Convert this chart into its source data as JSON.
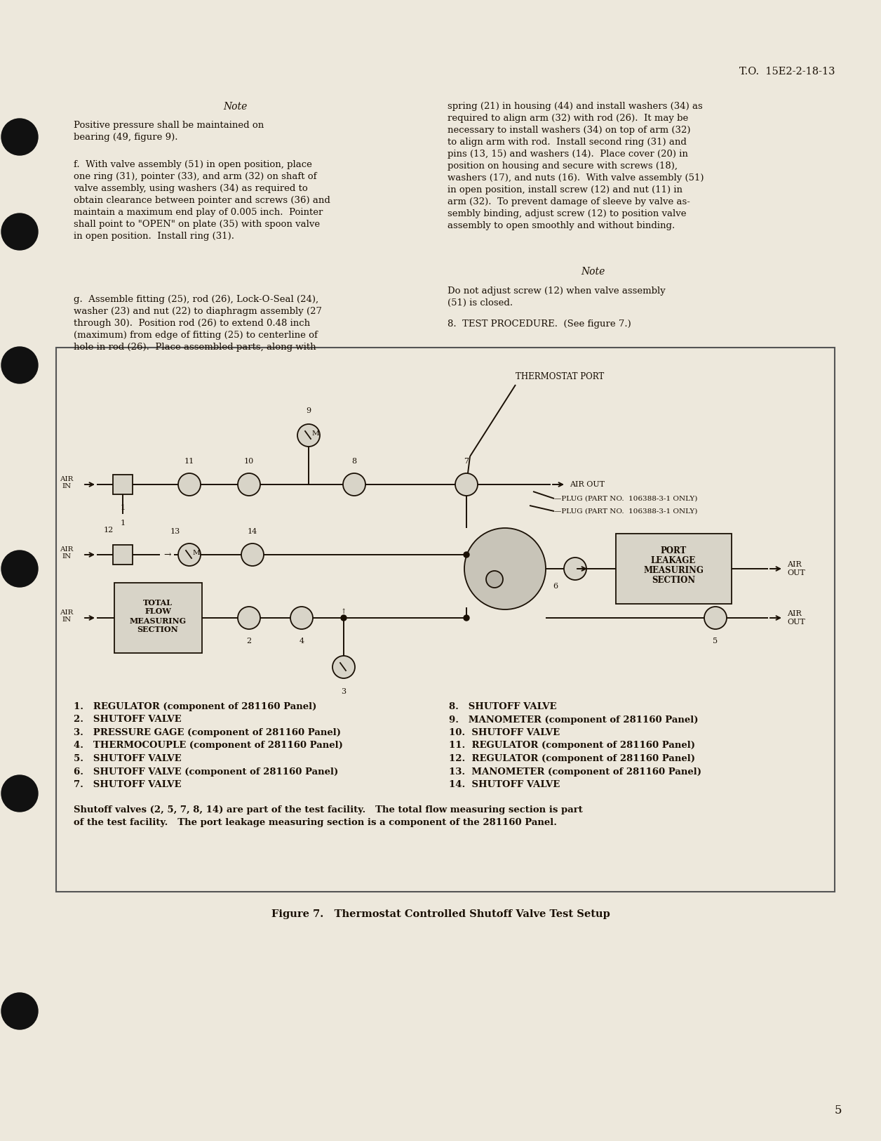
{
  "page_bg": "#ede8dc",
  "text_color": "#1a1005",
  "header_text": "T.O.  15E2-2-18-13",
  "page_number": "5",
  "note1_title": "Note",
  "note1_body": "Positive pressure shall be maintained on\nbearing (49, figure 9).",
  "para_f": "f.  With valve assembly (51) in open position, place\none ring (31), pointer (33), and arm (32) on shaft of\nvalve assembly, using washers (34) as required to\nobtain clearance between pointer and screws (36) and\nmaintain a maximum end play of 0.005 inch.  Pointer\nshall point to \"OPEN\" on plate (35) with spoon valve\nin open position.  Install ring (31).",
  "para_g": "g.  Assemble fitting (25), rod (26), Lock-O-Seal (24),\nwasher (23) and nut (22) to diaphragm assembly (27\nthrough 30).  Position rod (26) to extend 0.48 inch\n(maximum) from edge of fitting (25) to centerline of\nhole in rod (26).  Place assembled parts, along with",
  "right_col_text1": "spring (21) in housing (44) and install washers (34) as\nrequired to align arm (32) with rod (26).  It may be\nnecessary to install washers (34) on top of arm (32)\nto align arm with rod.  Install second ring (31) and\npins (13, 15) and washers (14).  Place cover (20) in\nposition on housing and secure with screws (18),\nwashers (17), and nuts (16).  With valve assembly (51)\nin open position, install screw (12) and nut (11) in\narm (32).  To prevent damage of sleeve by valve as-\nsembly binding, adjust screw (12) to position valve\nassembly to open smoothly and without binding.",
  "note2_title": "Note",
  "note2_body": "Do not adjust screw (12) when valve assembly\n(51) is closed.",
  "para_8": "8.  TEST PROCEDURE.  (See figure 7.)",
  "figure_caption": "Figure 7.   Thermostat Controlled Shutoff Valve Test Setup",
  "legend_items_left": [
    "1.   REGULATOR (component of 281160 Panel)",
    "2.   SHUTOFF VALVE",
    "3.   PRESSURE GAGE (component of 281160 Panel)",
    "4.   THERMOCOUPLE (component of 281160 Panel)",
    "5.   SHUTOFF VALVE",
    "6.   SHUTOFF VALVE (component of 281160 Panel)",
    "7.   SHUTOFF VALVE"
  ],
  "legend_items_right": [
    "8.   SHUTOFF VALVE",
    "9.   MANOMETER (component of 281160 Panel)",
    "10.  SHUTOFF VALVE",
    "11.  REGULATOR (component of 281160 Panel)",
    "12.  REGULATOR (component of 281160 Panel)",
    "13.  MANOMETER (component of 281160 Panel)",
    "14.  SHUTOFF VALVE"
  ],
  "legend_footer": "Shutoff valves (2, 5, 7, 8, 14) are part of the test facility.   The total flow measuring section is part\nof the test facility.   The port leakage measuring section is a component of the 281160 Panel."
}
